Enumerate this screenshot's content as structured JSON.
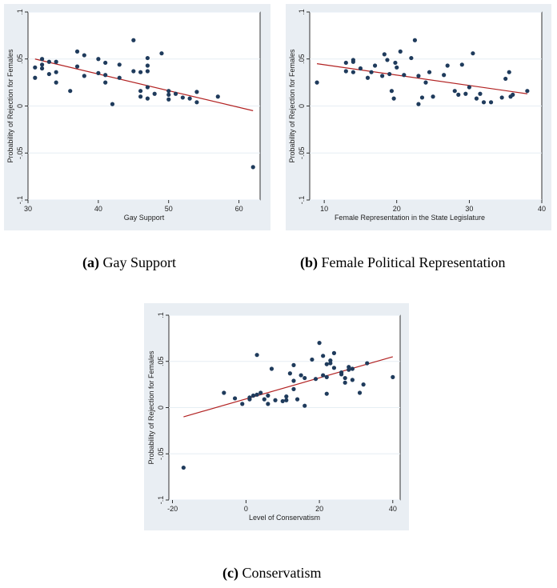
{
  "colors": {
    "panel_bg": "#e9eef3",
    "plot_bg": "#ffffff",
    "point": "#1f3b5c",
    "fit_line": "#b22222",
    "grid": "#e6eef4"
  },
  "chart_data": [
    {
      "id": "a",
      "type": "scatter",
      "caption_letter": "(a)",
      "caption_text": "Gay Support",
      "xlabel": "Gay Support",
      "ylabel": "Probability of Rejection for Females",
      "xlim": [
        30,
        63
      ],
      "ylim": [
        -0.1,
        0.1
      ],
      "xticks": [
        30,
        40,
        50,
        60
      ],
      "xtick_labels": [
        "30",
        "40",
        "50",
        "60"
      ],
      "yticks": [
        -0.1,
        -0.05,
        0,
        0.05,
        0.1
      ],
      "ytick_labels": [
        "-.1",
        "-.05",
        "0",
        ".05",
        ".1"
      ],
      "fit": {
        "x": [
          31,
          62
        ],
        "y": [
          0.05,
          -0.005
        ]
      },
      "points": [
        [
          31,
          0.041
        ],
        [
          31,
          0.03
        ],
        [
          32,
          0.05
        ],
        [
          32,
          0.044
        ],
        [
          32,
          0.04
        ],
        [
          33,
          0.047
        ],
        [
          33,
          0.034
        ],
        [
          34,
          0.047
        ],
        [
          34,
          0.036
        ],
        [
          34,
          0.025
        ],
        [
          36,
          0.016
        ],
        [
          37,
          0.058
        ],
        [
          37,
          0.042
        ],
        [
          38,
          0.054
        ],
        [
          38,
          0.032
        ],
        [
          40,
          0.05
        ],
        [
          40,
          0.035
        ],
        [
          41,
          0.046
        ],
        [
          41,
          0.033
        ],
        [
          41,
          0.025
        ],
        [
          42,
          0.002
        ],
        [
          43,
          0.044
        ],
        [
          43,
          0.03
        ],
        [
          45,
          0.07
        ],
        [
          45,
          0.037
        ],
        [
          46,
          0.036
        ],
        [
          46,
          0.016
        ],
        [
          46,
          0.01
        ],
        [
          47,
          0.051
        ],
        [
          47,
          0.043
        ],
        [
          47,
          0.037
        ],
        [
          47,
          0.02
        ],
        [
          47,
          0.008
        ],
        [
          48,
          0.013
        ],
        [
          49,
          0.056
        ],
        [
          50,
          0.016
        ],
        [
          50,
          0.012
        ],
        [
          50,
          0.007
        ],
        [
          51,
          0.013
        ],
        [
          52,
          0.009
        ],
        [
          53,
          0.008
        ],
        [
          54,
          0.015
        ],
        [
          54,
          0.004
        ],
        [
          57,
          0.01
        ],
        [
          62,
          -0.065
        ]
      ]
    },
    {
      "id": "b",
      "type": "scatter",
      "caption_letter": "(b)",
      "caption_text": "Female Political Representation",
      "xlabel": "Female Representation in the State Legislature",
      "ylabel": "Probability of Rejection for Females",
      "xlim": [
        8,
        40
      ],
      "ylim": [
        -0.1,
        0.1
      ],
      "xticks": [
        10,
        20,
        30,
        40
      ],
      "xtick_labels": [
        "10",
        "20",
        "30",
        "40"
      ],
      "yticks": [
        -0.1,
        -0.05,
        0,
        0.05,
        0.1
      ],
      "ytick_labels": [
        "-.1",
        "-.05",
        "0",
        ".05",
        ".1"
      ],
      "fit": {
        "x": [
          9,
          38
        ],
        "y": [
          0.045,
          0.013
        ]
      },
      "points": [
        [
          9,
          0.025
        ],
        [
          13,
          0.046
        ],
        [
          13,
          0.037
        ],
        [
          14,
          0.049
        ],
        [
          14,
          0.047
        ],
        [
          14,
          0.036
        ],
        [
          15,
          0.04
        ],
        [
          16,
          0.03
        ],
        [
          16.5,
          0.036
        ],
        [
          17,
          0.043
        ],
        [
          18,
          0.032
        ],
        [
          18.3,
          0.055
        ],
        [
          18.7,
          0.049
        ],
        [
          19,
          0.034
        ],
        [
          19.3,
          0.016
        ],
        [
          19.6,
          0.008
        ],
        [
          19.8,
          0.046
        ],
        [
          20,
          0.041
        ],
        [
          20.5,
          0.058
        ],
        [
          21,
          0.033
        ],
        [
          22,
          0.051
        ],
        [
          22.5,
          0.07
        ],
        [
          23,
          0.032
        ],
        [
          23.5,
          0.009
        ],
        [
          23,
          0.002
        ],
        [
          24,
          0.025
        ],
        [
          24.5,
          0.036
        ],
        [
          25,
          0.01
        ],
        [
          26.5,
          0.033
        ],
        [
          27,
          0.043
        ],
        [
          28,
          0.016
        ],
        [
          28.5,
          0.012
        ],
        [
          29,
          0.044
        ],
        [
          29.5,
          0.013
        ],
        [
          30,
          0.02
        ],
        [
          30.5,
          0.056
        ],
        [
          31,
          0.008
        ],
        [
          31.5,
          0.013
        ],
        [
          32,
          0.004
        ],
        [
          33,
          0.004
        ],
        [
          34.5,
          0.009
        ],
        [
          35,
          0.029
        ],
        [
          35.5,
          0.036
        ],
        [
          35.7,
          0.01
        ],
        [
          36,
          0.012
        ],
        [
          38,
          0.016
        ]
      ]
    },
    {
      "id": "c",
      "type": "scatter",
      "caption_letter": "(c)",
      "caption_text": "Conservatism",
      "xlabel": "Level of Conservatism",
      "ylabel": "Probability of Rejection for Females",
      "xlim": [
        -21,
        42
      ],
      "ylim": [
        -0.1,
        0.1
      ],
      "xticks": [
        -20,
        0,
        20,
        40
      ],
      "xtick_labels": [
        "-20",
        "0",
        "20",
        "40"
      ],
      "yticks": [
        -0.1,
        -0.05,
        0,
        0.05,
        0.1
      ],
      "ytick_labels": [
        "-.1",
        "-.05",
        "0",
        ".05",
        ".1"
      ],
      "fit": {
        "x": [
          -17,
          40
        ],
        "y": [
          -0.01,
          0.055
        ]
      },
      "points": [
        [
          -17,
          -0.065
        ],
        [
          -6,
          0.016
        ],
        [
          -3,
          0.01
        ],
        [
          -1,
          0.004
        ],
        [
          1,
          0.009
        ],
        [
          1,
          0.011
        ],
        [
          2,
          0.013
        ],
        [
          3,
          0.057
        ],
        [
          3,
          0.014
        ],
        [
          4,
          0.016
        ],
        [
          5,
          0.009
        ],
        [
          6,
          0.004
        ],
        [
          6,
          0.013
        ],
        [
          7,
          0.042
        ],
        [
          8,
          0.008
        ],
        [
          10,
          0.007
        ],
        [
          11,
          0.012
        ],
        [
          11,
          0.008
        ],
        [
          12,
          0.037
        ],
        [
          13,
          0.046
        ],
        [
          13,
          0.029
        ],
        [
          13,
          0.02
        ],
        [
          14,
          0.009
        ],
        [
          15,
          0.035
        ],
        [
          16,
          0.032
        ],
        [
          16,
          0.002
        ],
        [
          18,
          0.052
        ],
        [
          19,
          0.031
        ],
        [
          20,
          0.07
        ],
        [
          21,
          0.056
        ],
        [
          21,
          0.035
        ],
        [
          22,
          0.047
        ],
        [
          22,
          0.033
        ],
        [
          22,
          0.015
        ],
        [
          23,
          0.051
        ],
        [
          23,
          0.048
        ],
        [
          24,
          0.059
        ],
        [
          24,
          0.043
        ],
        [
          26,
          0.038
        ],
        [
          26,
          0.036
        ],
        [
          27,
          0.032
        ],
        [
          27,
          0.027
        ],
        [
          28,
          0.044
        ],
        [
          28,
          0.041
        ],
        [
          29,
          0.042
        ],
        [
          29,
          0.03
        ],
        [
          31,
          0.016
        ],
        [
          32,
          0.025
        ],
        [
          33,
          0.048
        ],
        [
          40,
          0.033
        ]
      ]
    }
  ]
}
